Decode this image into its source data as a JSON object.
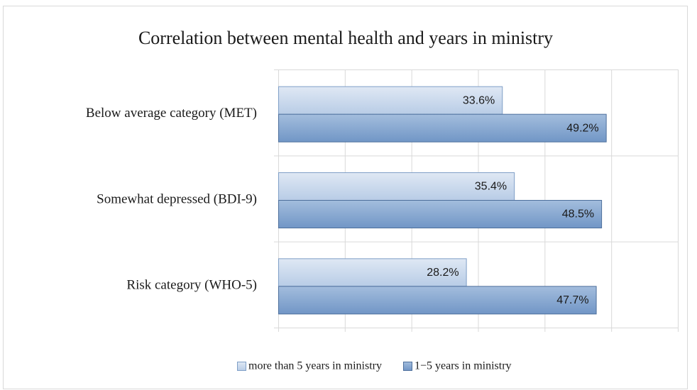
{
  "chart_data": {
    "type": "hbar",
    "title": "Correlation between mental health and years in ministry",
    "categories": [
      "Below average category (MET)",
      "Somewhat depressed (BDI-9)",
      "Risk category (WHO-5)"
    ],
    "series": [
      {
        "name": "more than 5 years in ministry",
        "color": "#c6d6ea",
        "values": [
          33.6,
          35.4,
          28.2
        ],
        "value_labels": [
          "33.6%",
          "35.4%",
          "28.2%"
        ]
      },
      {
        "name": "1−5 years in ministry",
        "color": "#86a6d0",
        "values": [
          49.2,
          48.5,
          47.7
        ],
        "value_labels": [
          "49.2%",
          "48.5%",
          "47.7%"
        ]
      }
    ],
    "xlim": [
      0,
      60
    ],
    "xticks": [
      0,
      10,
      20,
      30,
      40,
      50,
      60
    ],
    "grid": true,
    "legend": "bottom"
  }
}
